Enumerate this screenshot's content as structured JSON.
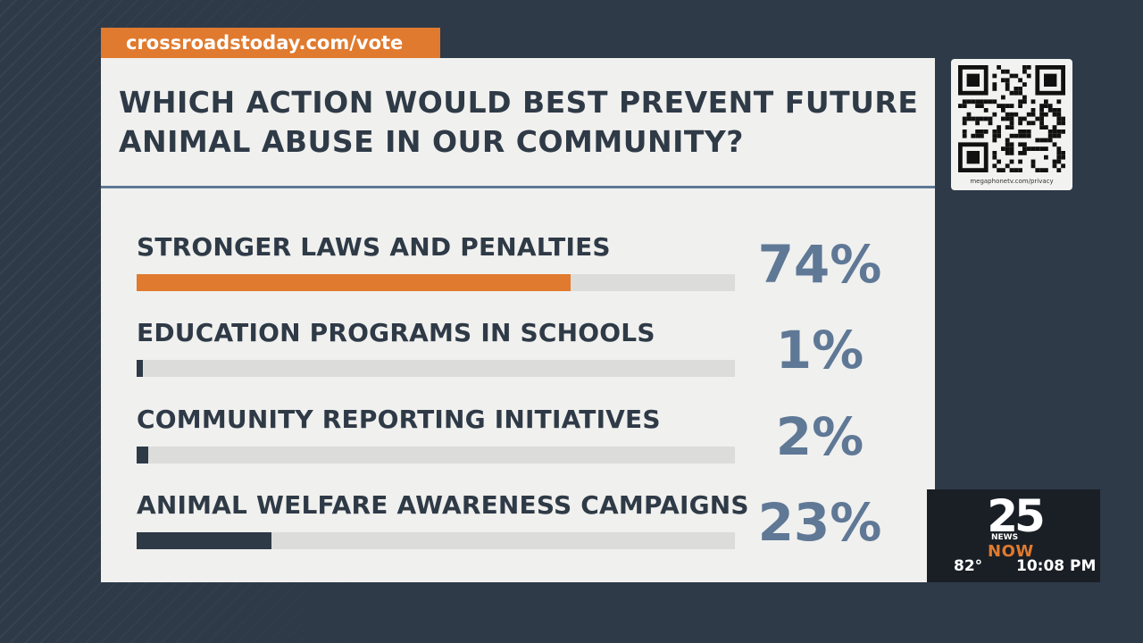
{
  "url_tab": "crossroadstoday.com/vote",
  "qr": {
    "caption": "megaphonetv.com/privacy"
  },
  "chart_data": {
    "type": "bar",
    "title": "WHICH ACTION WOULD BEST PREVENT FUTURE ANIMAL ABUSE IN OUR COMMUNITY?",
    "categories": [
      "STRONGER LAWS AND PENALTIES",
      "EDUCATION PROGRAMS IN SCHOOLS",
      "COMMUNITY REPORTING INITIATIVES",
      "ANIMAL WELFARE AWARENESS CAMPAIGNS"
    ],
    "values": [
      74,
      1,
      2,
      23
    ],
    "labels": [
      "74%",
      "1%",
      "2%",
      "23%"
    ],
    "colors": [
      "#e07a2e",
      "#2f3a47",
      "#2f3a47",
      "#2f3a47"
    ],
    "ylim": [
      0,
      100
    ],
    "orientation": "horizontal"
  },
  "bug": {
    "channel": "25",
    "brand_top": "NEWS",
    "brand_bottom": "NOW",
    "temperature": "82°",
    "time": "10:08 PM"
  }
}
